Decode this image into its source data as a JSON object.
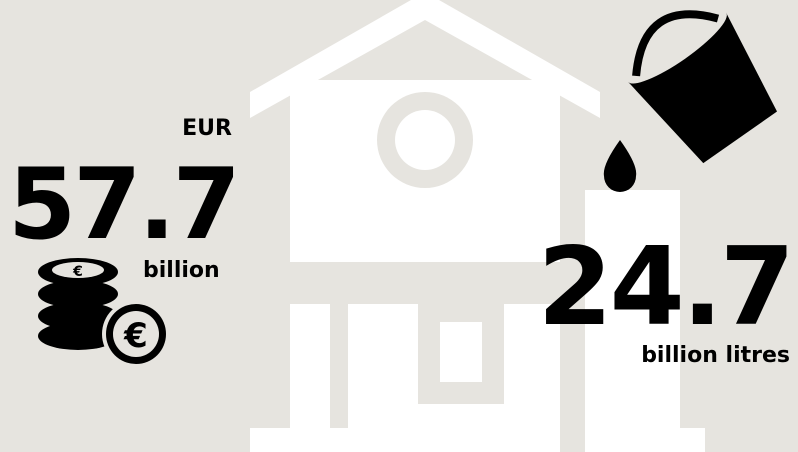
{
  "left": {
    "currency": "EUR",
    "amount": "57.7",
    "unit": "billion"
  },
  "right": {
    "amount": "24.7",
    "unit": "billion litres"
  }
}
